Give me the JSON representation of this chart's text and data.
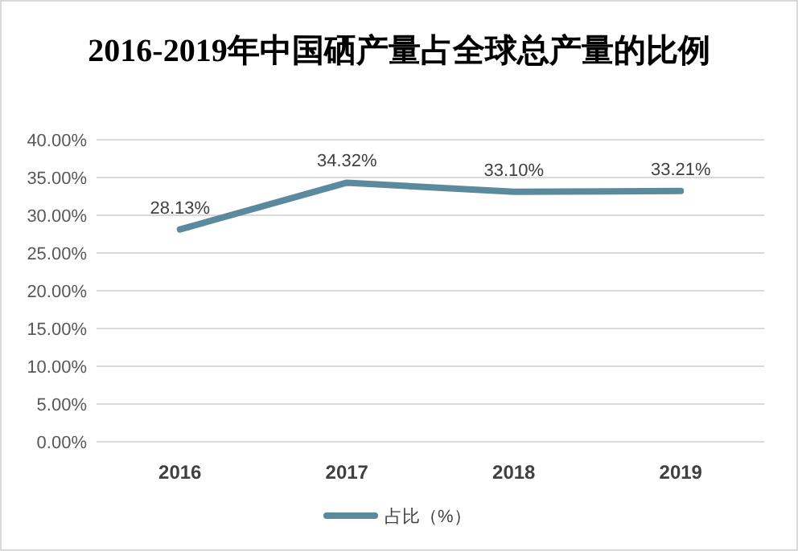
{
  "chart_data": {
    "type": "line",
    "title": "2016-2019年中国硒产量占全球总产量的比例",
    "categories": [
      "2016",
      "2017",
      "2018",
      "2019"
    ],
    "series": [
      {
        "name": "占比（%）",
        "color": "#5b8a9e",
        "values": [
          28.13,
          34.32,
          33.1,
          33.21
        ],
        "value_labels": [
          "28.13%",
          "34.32%",
          "33.10%",
          "33.21%"
        ]
      }
    ],
    "ylim": [
      0,
      40
    ],
    "yticks": [
      {
        "value": 0,
        "label": "0.00%"
      },
      {
        "value": 5,
        "label": "5.00%"
      },
      {
        "value": 10,
        "label": "10.00%"
      },
      {
        "value": 15,
        "label": "15.00%"
      },
      {
        "value": 20,
        "label": "20.00%"
      },
      {
        "value": 25,
        "label": "25.00%"
      },
      {
        "value": 30,
        "label": "30.00%"
      },
      {
        "value": 35,
        "label": "35.00%"
      },
      {
        "value": 40,
        "label": "40.00%"
      }
    ],
    "grid": "y",
    "legend": "bottom",
    "marker": "none",
    "line_style": "solid"
  }
}
